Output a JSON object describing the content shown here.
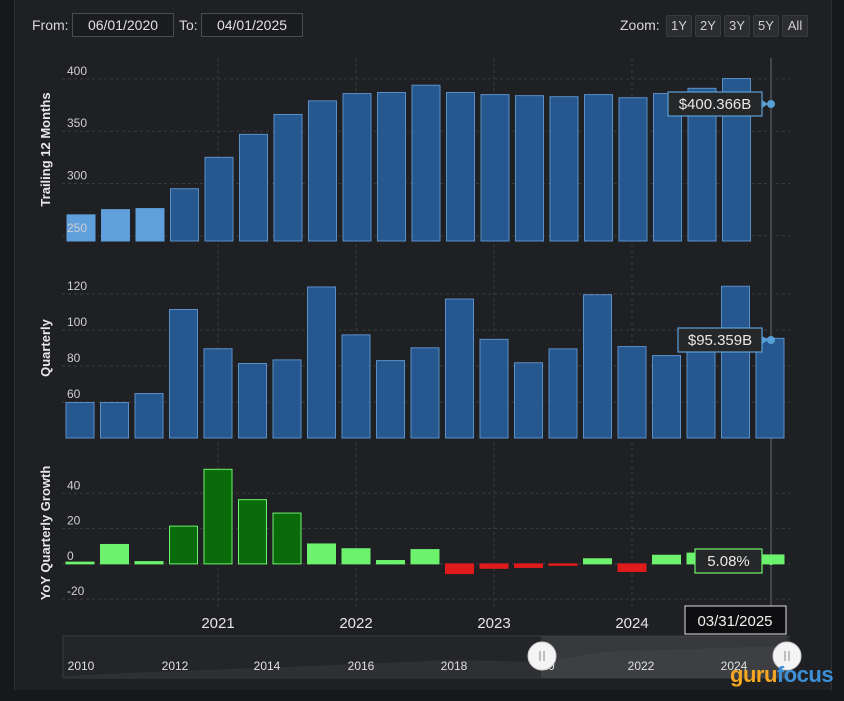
{
  "toolbar": {
    "from_label": "From:",
    "from_value": "06/01/2020",
    "to_label": "To:",
    "to_value": "04/01/2025",
    "zoom_label": "Zoom:",
    "zoom_options": [
      "1Y",
      "2Y",
      "3Y",
      "5Y",
      "All"
    ]
  },
  "colors": {
    "bar_blue": "#26578f",
    "bar_blue_light": "#5fa0dc",
    "bar_border": "#5b8fc7",
    "green_dark": "#0a6b0a",
    "green_light": "#6cf26c",
    "red": "#e01b1b",
    "background": "#1f2023"
  },
  "chart_data": [
    {
      "type": "bar",
      "ylabel": "Trailing 12 Months",
      "yticks": [
        250,
        300,
        350,
        400
      ],
      "ylim": [
        245,
        420
      ],
      "values": [
        270,
        275,
        276,
        295,
        325,
        347,
        366,
        379,
        386,
        387,
        394,
        387,
        385,
        384,
        383,
        385,
        382,
        386,
        391,
        400.366
      ],
      "highlighted": [
        0,
        1,
        2
      ],
      "callout": "$400.366B"
    },
    {
      "type": "bar",
      "ylabel": "Quarterly",
      "yticks": [
        60,
        80,
        100,
        120
      ],
      "ylim": [
        40,
        140
      ],
      "values": [
        59.7,
        59.7,
        64.7,
        111.4,
        89.6,
        81.4,
        83.4,
        123.9,
        97.3,
        83.0,
        90.1,
        117.2,
        94.8,
        81.8,
        89.5,
        119.6,
        90.8,
        85.8,
        94.9,
        124.3,
        95.359
      ],
      "callout": "$95.359B"
    },
    {
      "type": "bar",
      "ylabel": "YoY Quarterly Growth",
      "yticks": [
        -20,
        0,
        20,
        40
      ],
      "ylim": [
        -25,
        60
      ],
      "values": [
        1.0,
        11.0,
        1.3,
        21.4,
        53.6,
        36.4,
        28.8,
        11.3,
        8.6,
        1.9,
        8.1,
        -5.5,
        -2.5,
        -2.0,
        -0.8,
        2.9,
        -4.3,
        4.9,
        6.1,
        4.0,
        5.08
      ],
      "dark_indices": [
        3,
        4,
        5,
        6
      ],
      "callout": "5.08%"
    }
  ],
  "x_axis": {
    "labels": [
      "2021",
      "2022",
      "2023",
      "2024"
    ],
    "hover_date": "03/31/2025"
  },
  "navigator": {
    "labels": [
      "2010",
      "2012",
      "2014",
      "2016",
      "2018",
      "20",
      "2022",
      "2024"
    ]
  },
  "logo": {
    "part1": "guru",
    "part2": "focus"
  }
}
